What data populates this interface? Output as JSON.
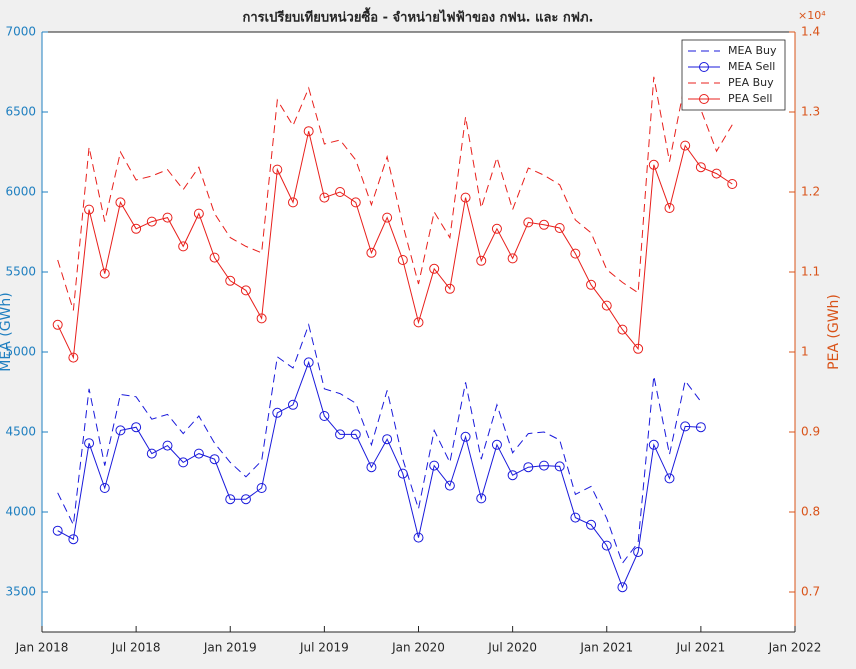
{
  "chart_data": {
    "type": "line",
    "title": "การเปรียบเทียบหน่วยซื้อ - จำหน่ายไฟฟ้าของ กฟน. และ กฟภ.",
    "y_label": "MEA (GWh)",
    "y2_label": "PEA (GWh)",
    "y2_exponent_label": "×10⁴",
    "x": [
      "Feb 2018",
      "Mar 2018",
      "Apr 2018",
      "May 2018",
      "Jun 2018",
      "Jul 2018",
      "Aug 2018",
      "Sep 2018",
      "Oct 2018",
      "Nov 2018",
      "Dec 2018",
      "Jan 2019",
      "Feb 2019",
      "Mar 2019",
      "Apr 2019",
      "May 2019",
      "Jun 2019",
      "Jul 2019",
      "Aug 2019",
      "Sep 2019",
      "Oct 2019",
      "Nov 2019",
      "Dec 2019",
      "Jan 2020",
      "Feb 2020",
      "Mar 2020",
      "Apr 2020",
      "May 2020",
      "Jun 2020",
      "Jul 2020",
      "Aug 2020",
      "Sep 2020",
      "Oct 2020",
      "Nov 2020",
      "Dec 2020",
      "Jan 2021",
      "Feb 2021",
      "Mar 2021",
      "Apr 2021",
      "May 2021",
      "Jun 2021",
      "Jul 2021",
      "Aug 2021",
      "Sep 2021"
    ],
    "series": [
      {
        "name": "MEA Buy",
        "color": "#1a1adb",
        "linestyle": "dashed",
        "marker": "none",
        "axis": "y",
        "values": [
          4120,
          3920,
          4770,
          4290,
          4735,
          4720,
          4580,
          4610,
          4490,
          4600,
          4430,
          4310,
          4220,
          4320,
          4970,
          4900,
          5170,
          4770,
          4740,
          4680,
          4420,
          4760,
          4330,
          4020,
          4510,
          4310,
          4810,
          4330,
          4670,
          4370,
          4490,
          4500,
          4450,
          4110,
          4160,
          3960,
          3680,
          3810,
          4850,
          4360,
          4820,
          4690,
          null,
          null
        ]
      },
      {
        "name": "MEA Sell",
        "color": "#1a1adb",
        "linestyle": "solid",
        "marker": "circle",
        "axis": "y",
        "values": [
          3883,
          3830,
          4430,
          4150,
          4510,
          4530,
          4365,
          4415,
          4310,
          4365,
          4330,
          4080,
          4080,
          4150,
          4620,
          4670,
          4935,
          4600,
          4485,
          4485,
          4280,
          4455,
          4240,
          3840,
          4290,
          4165,
          4470,
          4085,
          4420,
          4230,
          4280,
          4290,
          4285,
          3965,
          3920,
          3790,
          3530,
          3750,
          4420,
          4210,
          4535,
          4530,
          null,
          null
        ]
      },
      {
        "name": "PEA Buy",
        "color": "#e8201c",
        "linestyle": "dashed",
        "marker": "none",
        "axis": "y2",
        "values": [
          1.115,
          1.052,
          1.256,
          1.163,
          1.25,
          1.215,
          1.22,
          1.228,
          1.203,
          1.231,
          1.173,
          1.143,
          1.132,
          1.124,
          1.315,
          1.283,
          1.33,
          1.26,
          1.265,
          1.24,
          1.184,
          1.244,
          1.159,
          1.085,
          1.175,
          1.143,
          1.294,
          1.18,
          1.243,
          1.178,
          1.23,
          1.221,
          1.209,
          1.165,
          1.149,
          1.103,
          1.087,
          1.074,
          1.344,
          1.238,
          1.338,
          1.303,
          1.251,
          1.284
        ]
      },
      {
        "name": "PEA Sell",
        "color": "#e8201c",
        "linestyle": "solid",
        "marker": "circle",
        "axis": "y2",
        "values": [
          1.034,
          0.993,
          1.178,
          1.098,
          1.187,
          1.154,
          1.163,
          1.168,
          1.132,
          1.173,
          1.118,
          1.089,
          1.077,
          1.042,
          1.228,
          1.187,
          1.276,
          1.193,
          1.2,
          1.187,
          1.124,
          1.168,
          1.115,
          1.037,
          1.104,
          1.079,
          1.193,
          1.114,
          1.154,
          1.117,
          1.162,
          1.159,
          1.155,
          1.123,
          1.084,
          1.058,
          1.028,
          1.004,
          1.234,
          1.18,
          1.258,
          1.231,
          1.223,
          1.21
        ]
      }
    ],
    "xlim": [
      "Jan 2018",
      "Jan 2022"
    ],
    "xticks": [
      "Jan 2018",
      "Jul 2018",
      "Jan 2019",
      "Jul 2019",
      "Jan 2020",
      "Jul 2020",
      "Jan 2021",
      "Jul 2021",
      "Jan 2022"
    ],
    "ylim": [
      3250,
      7000
    ],
    "yticks": [
      3500,
      4000,
      4500,
      5000,
      5500,
      6000,
      6500,
      7000
    ],
    "y_color": "#1f7fc0",
    "y2lim": [
      0.65,
      1.4
    ],
    "y2ticks": [
      0.7,
      0.8,
      0.9,
      1,
      1.1,
      1.2,
      1.3,
      1.4
    ],
    "y2_color": "#d95319",
    "grid": false,
    "legend": "top-right"
  }
}
